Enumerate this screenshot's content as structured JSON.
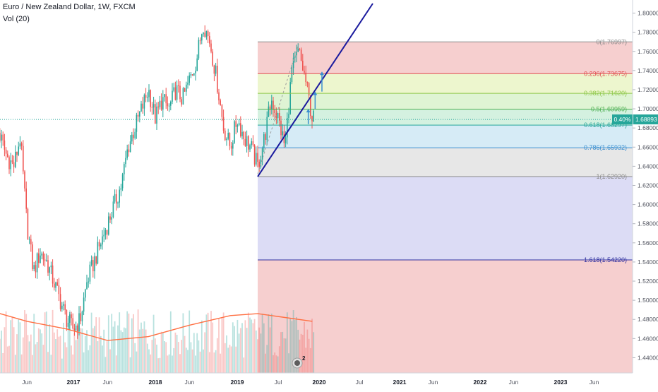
{
  "header": {
    "title": "Euro / New Zealand Dollar, 1W, FXCM",
    "indicator": "Vol (20)"
  },
  "colors": {
    "up": "#26a69a",
    "down": "#ef5350",
    "trendline": "#1a1a9e",
    "ma": "#ff7043"
  },
  "events_badge": "2",
  "chart_data": {
    "type": "candlestick",
    "symbol": "EURNZD",
    "timeframe": "1W",
    "ylim": [
      1.43,
      1.81
    ],
    "y_ticks": [
      "1.80000",
      "1.78000",
      "1.76000",
      "1.74000",
      "1.72000",
      "1.70000",
      "1.68000",
      "1.66000",
      "1.64000",
      "1.62000",
      "1.60000",
      "1.58000",
      "1.56000",
      "1.54000",
      "1.52000",
      "1.50000",
      "1.48000",
      "1.46000",
      "1.44000"
    ],
    "x_ticks": [
      "Jun",
      "2017",
      "Jun",
      "2018",
      "Jun",
      "2019",
      "Jul",
      "2020",
      "Jul",
      "2021",
      "Jun",
      "2022",
      "Jun",
      "2023",
      "Jun"
    ],
    "x_tick_dates": [
      "2016-06",
      "2017-01",
      "2017-06",
      "2018-01",
      "2018-06",
      "2019-01",
      "2019-07",
      "2020-01",
      "2020-07",
      "2021-01",
      "2021-06",
      "2022-01",
      "2022-06",
      "2023-01",
      "2023-06"
    ],
    "current_price": "1.68893",
    "current_change": "0.40%",
    "fib_levels": [
      {
        "label": "0(1.76997)",
        "value": 1.76997
      },
      {
        "label": "0.236(1.73675)",
        "value": 1.73675
      },
      {
        "label": "0.382(1.71620)",
        "value": 1.7162
      },
      {
        "label": "0.5(1.69959)",
        "value": 1.69959
      },
      {
        "label": "0.618(1.68297)",
        "value": 1.68297
      },
      {
        "label": "0.786(1.65932)",
        "value": 1.65932
      },
      {
        "label": "1(1.62920)",
        "value": 1.6292
      },
      {
        "label": "1.618(1.54220)",
        "value": 1.5422
      }
    ],
    "fib_start": "2019-04",
    "trendline": {
      "from": [
        "2019-04",
        1.6292
      ],
      "to": [
        "2020-09",
        1.81
      ]
    },
    "price_path": [
      [
        "2016-01",
        1.69
      ],
      [
        "2016-02",
        1.67
      ],
      [
        "2016-03",
        1.65
      ],
      [
        "2016-04",
        1.64
      ],
      [
        "2016-05",
        1.67
      ],
      [
        "2016-06",
        1.58
      ],
      [
        "2016-07",
        1.53
      ],
      [
        "2016-08",
        1.55
      ],
      [
        "2016-09",
        1.54
      ],
      [
        "2016-10",
        1.52
      ],
      [
        "2016-11",
        1.5
      ],
      [
        "2016-12",
        1.48
      ],
      [
        "2017-01",
        1.47
      ],
      [
        "2017-02",
        1.48
      ],
      [
        "2017-03",
        1.52
      ],
      [
        "2017-04",
        1.54
      ],
      [
        "2017-05",
        1.56
      ],
      [
        "2017-06",
        1.58
      ],
      [
        "2017-07",
        1.6
      ],
      [
        "2017-08",
        1.62
      ],
      [
        "2017-09",
        1.66
      ],
      [
        "2017-10",
        1.68
      ],
      [
        "2017-11",
        1.7
      ],
      [
        "2017-12",
        1.72
      ],
      [
        "2018-01",
        1.69
      ],
      [
        "2018-02",
        1.71
      ],
      [
        "2018-03",
        1.7
      ],
      [
        "2018-04",
        1.72
      ],
      [
        "2018-05",
        1.71
      ],
      [
        "2018-06",
        1.73
      ],
      [
        "2018-07",
        1.75
      ],
      [
        "2018-08",
        1.79
      ],
      [
        "2018-09",
        1.77
      ],
      [
        "2018-10",
        1.73
      ],
      [
        "2018-11",
        1.68
      ],
      [
        "2018-12",
        1.66
      ],
      [
        "2019-01",
        1.69
      ],
      [
        "2019-02",
        1.67
      ],
      [
        "2019-03",
        1.66
      ],
      [
        "2019-04",
        1.64
      ],
      [
        "2019-05",
        1.67
      ],
      [
        "2019-06",
        1.71
      ],
      [
        "2019-07",
        1.69
      ],
      [
        "2019-08",
        1.66
      ],
      [
        "2019-09",
        1.74
      ],
      [
        "2019-10",
        1.76
      ],
      [
        "2019-11",
        1.73
      ],
      [
        "2019-12",
        1.69
      ]
    ],
    "volume_ma_path": [
      [
        "2016-01",
        1.488
      ],
      [
        "2016-06",
        1.478
      ],
      [
        "2016-12",
        1.47
      ],
      [
        "2017-06",
        1.458
      ],
      [
        "2017-12",
        1.462
      ],
      [
        "2018-06",
        1.474
      ],
      [
        "2018-12",
        1.484
      ],
      [
        "2019-04",
        1.486
      ],
      [
        "2019-08",
        1.482
      ],
      [
        "2019-12",
        1.478
      ]
    ]
  }
}
